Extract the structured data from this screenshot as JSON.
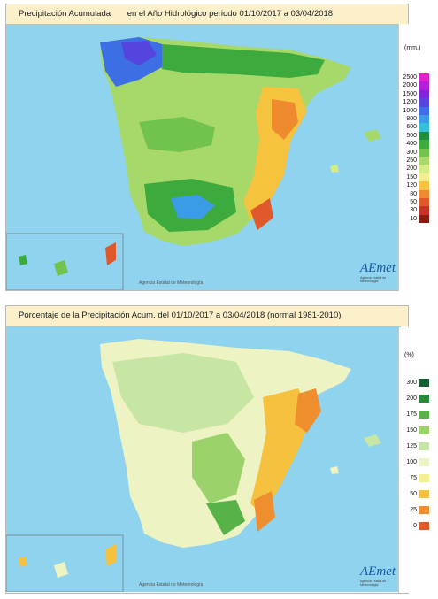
{
  "panel1": {
    "title_parts": [
      "Precipitación Acumulada",
      "en el Año Hidrológico  periodo 01/10/2017 a 03/04/2018"
    ],
    "unit": "(mm.)",
    "credit": "Agencia Estatal de Meteorología",
    "legend": [
      {
        "label": "2500",
        "color": "#e31ecc"
      },
      {
        "label": "2000",
        "color": "#b41ed9"
      },
      {
        "label": "1500",
        "color": "#7f26d9"
      },
      {
        "label": "1200",
        "color": "#5544dd"
      },
      {
        "label": "1000",
        "color": "#3b6fe3"
      },
      {
        "label": "800",
        "color": "#3a9be6"
      },
      {
        "label": "600",
        "color": "#34c0d8"
      },
      {
        "label": "500",
        "color": "#1f8f3c"
      },
      {
        "label": "400",
        "color": "#3caa3c"
      },
      {
        "label": "300",
        "color": "#72c24e"
      },
      {
        "label": "250",
        "color": "#a6d96a"
      },
      {
        "label": "200",
        "color": "#d3ec88"
      },
      {
        "label": "150",
        "color": "#f2f08e"
      },
      {
        "label": "120",
        "color": "#f6c33f"
      },
      {
        "label": "80",
        "color": "#ef8a2f"
      },
      {
        "label": "50",
        "color": "#e0592a"
      },
      {
        "label": "30",
        "color": "#c43323"
      },
      {
        "label": "10",
        "color": "#8c1b14"
      }
    ]
  },
  "panel2": {
    "title_parts": [
      "Porcentaje de la Precipitación Acum. del 01/10/2017 a  03/04/2018  (normal 1981-2010)"
    ],
    "unit": "(%)",
    "credit": "Agencia Estatal de Meteorología",
    "legend": [
      {
        "label": "300",
        "color": "#155e33"
      },
      {
        "label": "200",
        "color": "#2c8a3b"
      },
      {
        "label": "175",
        "color": "#57b247"
      },
      {
        "label": "150",
        "color": "#9bd26b"
      },
      {
        "label": "125",
        "color": "#c7e5a3"
      },
      {
        "label": "100",
        "color": "#eef3c3"
      },
      {
        "label": "75",
        "color": "#f6ee93"
      },
      {
        "label": "50",
        "color": "#f5c13e"
      },
      {
        "label": "25",
        "color": "#ee8e2f"
      },
      {
        "label": "0",
        "color": "#e4592b"
      }
    ]
  },
  "logo": {
    "text": "AEmet",
    "subtitle": "Agencia Estatal de Meteorología"
  }
}
